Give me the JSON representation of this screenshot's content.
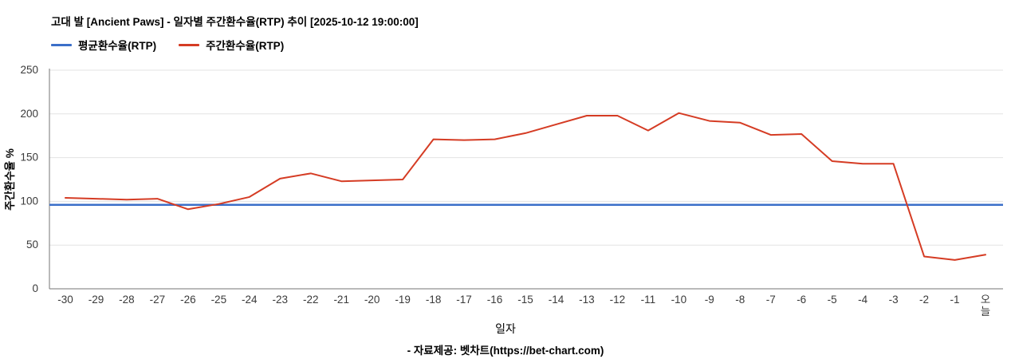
{
  "chart_data": {
    "type": "line",
    "title": "고대 발 [Ancient Paws] - 일자별 주간환수율(RTP) 추이 [2025-10-12 19:00:00]",
    "xlabel": "일자",
    "ylabel": "주간환수율 %",
    "ylim": [
      0,
      250
    ],
    "yticks": [
      0,
      50,
      100,
      150,
      200,
      250
    ],
    "grid": true,
    "legend_position": "top-left",
    "categories": [
      "-30",
      "-29",
      "-28",
      "-27",
      "-26",
      "-25",
      "-24",
      "-23",
      "-22",
      "-21",
      "-20",
      "-19",
      "-18",
      "-17",
      "-16",
      "-15",
      "-14",
      "-13",
      "-12",
      "-11",
      "-10",
      "-9",
      "-8",
      "-7",
      "-6",
      "-5",
      "-4",
      "-3",
      "-2",
      "-1",
      "오늘"
    ],
    "series": [
      {
        "name": "평균환수율(RTP)",
        "color": "#3b6fc9",
        "style": "full-width-constant",
        "value": 96
      },
      {
        "name": "주간환수율(RTP)",
        "color": "#d53c24",
        "values": [
          104,
          103,
          102,
          103,
          91,
          97,
          105,
          126,
          132,
          123,
          124,
          125,
          171,
          170,
          171,
          178,
          188,
          198,
          198,
          181,
          201,
          192,
          190,
          176,
          177,
          146,
          143,
          143,
          37,
          33,
          39
        ]
      }
    ],
    "colors": {
      "grid": "#e3e3e3",
      "axis": "#757575",
      "tick_text": "#3a3a3a"
    }
  },
  "footer": {
    "prefix": "- 자료제공: ",
    "link_text": "벳차트(https://bet-chart.com)"
  }
}
